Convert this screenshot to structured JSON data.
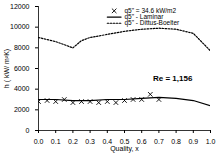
{
  "chart_data": {
    "type": "line",
    "x_label": "Quality, x",
    "y_label": "h ( kW/ m²K)",
    "annotation": "Re = 1,156",
    "xlim": [
      0,
      1
    ],
    "xticks": [
      {
        "value": 0,
        "label": "0.0"
      },
      {
        "value": 0.1,
        "label": "0.1"
      },
      {
        "value": 0.2,
        "label": "0.2"
      },
      {
        "value": 0.3,
        "label": "0.3"
      },
      {
        "value": 0.4,
        "label": "0.4"
      },
      {
        "value": 0.5,
        "label": "0.5"
      },
      {
        "value": 0.6,
        "label": "0.6"
      },
      {
        "value": 0.7,
        "label": "0.7"
      },
      {
        "value": 0.8,
        "label": "0.8"
      },
      {
        "value": 0.9,
        "label": "0.9"
      },
      {
        "value": 1,
        "label": "1.0"
      }
    ],
    "ylim": [
      0,
      12000
    ],
    "yticks": [
      0,
      2000,
      4000,
      6000,
      8000,
      10000,
      12000
    ],
    "legend": "top-right",
    "series": [
      {
        "name": "q5\" = 34.6 kW/m2",
        "type": "scatter",
        "marker": "x",
        "color": "#000000",
        "x": [
          0.0,
          0.05,
          0.1,
          0.15,
          0.2,
          0.25,
          0.3,
          0.35,
          0.4,
          0.45,
          0.5,
          0.55,
          0.6,
          0.65,
          0.7
        ],
        "values": [
          2800,
          2900,
          2800,
          3000,
          2700,
          2800,
          2800,
          2700,
          2800,
          2700,
          2900,
          3000,
          3000,
          3500,
          3000
        ]
      },
      {
        "name": "q5\" - Laminar",
        "type": "line",
        "line_style": "solid",
        "color": "#000000",
        "x": [
          0.0,
          0.1,
          0.2,
          0.3,
          0.4,
          0.5,
          0.6,
          0.7,
          0.8,
          0.9,
          1.0
        ],
        "values": [
          3000,
          3000,
          2900,
          2900,
          3000,
          3000,
          3100,
          3200,
          3100,
          2900,
          2400
        ]
      },
      {
        "name": "q5\" - Dittus-Boelter",
        "type": "line",
        "line_style": "dotted",
        "color": "#000000",
        "x": [
          0.0,
          0.1,
          0.2,
          0.25,
          0.3,
          0.4,
          0.5,
          0.6,
          0.7,
          0.8,
          0.9,
          1.0
        ],
        "values": [
          9000,
          8600,
          8000,
          8700,
          9000,
          9300,
          9600,
          9800,
          9900,
          9800,
          9400,
          7700
        ]
      }
    ]
  }
}
